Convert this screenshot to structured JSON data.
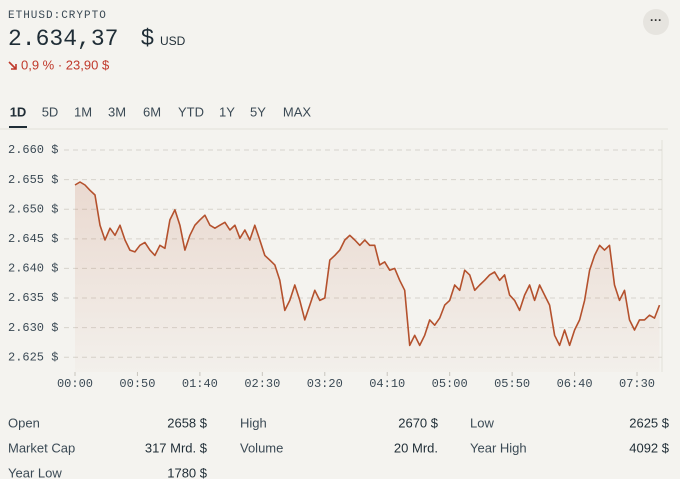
{
  "header": {
    "symbol": "ETHUSD:CRYPTO",
    "price": "2.634,37",
    "currency_sign": "$",
    "currency": "USD",
    "change": "0,9 % · 23,90 $",
    "more": "···"
  },
  "tabs": [
    "1D",
    "5D",
    "1M",
    "3M",
    "6M",
    "YTD",
    "1Y",
    "5Y",
    "MAX"
  ],
  "active_tab": 0,
  "chart_data": {
    "type": "line",
    "x": [
      0,
      4,
      8,
      12,
      16,
      20,
      24,
      28,
      32,
      36,
      40,
      44,
      48,
      52,
      56,
      60,
      64,
      68,
      72,
      76,
      80,
      84,
      88,
      92,
      96,
      100,
      104,
      108,
      112,
      116,
      120,
      124,
      128,
      132,
      136,
      140,
      144,
      148,
      152,
      156,
      160,
      164,
      168,
      172,
      176,
      180,
      184,
      188,
      192,
      196,
      200,
      204,
      208,
      212,
      216,
      220,
      224,
      228,
      232,
      236,
      240,
      244,
      248,
      252,
      256,
      260,
      264,
      268,
      272,
      276,
      280,
      284,
      288,
      292,
      296,
      300,
      304,
      308,
      312,
      316,
      320,
      324,
      328,
      332,
      336,
      340,
      344,
      348,
      352,
      356,
      360,
      364,
      368,
      372,
      376,
      380,
      384,
      388,
      392,
      396,
      400,
      404,
      408,
      412,
      416,
      420,
      424,
      428,
      432,
      436,
      440,
      444,
      448,
      452,
      456,
      460,
      464,
      468
    ],
    "series": [
      {
        "color": "#b4512d",
        "values": [
          2654.1,
          2654.6,
          2654.1,
          2653.2,
          2652.4,
          2647.3,
          2644.8,
          2646.8,
          2645.6,
          2647.3,
          2644.8,
          2643.1,
          2642.8,
          2643.9,
          2644.4,
          2643.1,
          2642.2,
          2643.9,
          2643.4,
          2648.2,
          2649.9,
          2647.3,
          2643.1,
          2645.6,
          2647.3,
          2648.2,
          2649.0,
          2647.3,
          2646.8,
          2647.3,
          2647.8,
          2646.5,
          2647.3,
          2645.1,
          2646.5,
          2644.8,
          2647.3,
          2644.8,
          2642.2,
          2641.4,
          2640.6,
          2638.0,
          2632.9,
          2634.6,
          2637.2,
          2634.6,
          2631.3,
          2633.8,
          2636.3,
          2634.6,
          2635.0,
          2641.4,
          2642.2,
          2643.1,
          2644.8,
          2645.6,
          2644.8,
          2643.9,
          2644.8,
          2643.9,
          2643.9,
          2640.6,
          2641.1,
          2639.7,
          2640.0,
          2638.0,
          2636.3,
          2627.0,
          2628.7,
          2627.0,
          2628.7,
          2631.3,
          2630.4,
          2631.6,
          2633.8,
          2634.6,
          2637.2,
          2636.3,
          2639.7,
          2638.9,
          2636.3,
          2637.2,
          2638.0,
          2638.9,
          2639.4,
          2638.0,
          2638.9,
          2635.5,
          2634.6,
          2632.9,
          2635.5,
          2637.2,
          2634.6,
          2637.2,
          2635.5,
          2633.8,
          2628.7,
          2627.0,
          2629.6,
          2627.0,
          2629.6,
          2631.3,
          2634.6,
          2639.7,
          2642.2,
          2643.9,
          2643.1,
          2643.9,
          2637.2,
          2634.6,
          2636.3,
          2631.3,
          2629.6,
          2631.3,
          2631.3,
          2632.1,
          2631.6,
          2633.8
        ]
      }
    ],
    "xlim": [
      -4,
      470
    ],
    "xticks": [
      {
        "value": 0,
        "label": "00:00"
      },
      {
        "value": 50,
        "label": "00:50"
      },
      {
        "value": 100,
        "label": "01:40"
      },
      {
        "value": 150,
        "label": "02:30"
      },
      {
        "value": 200,
        "label": "03:20"
      },
      {
        "value": 250,
        "label": "04:10"
      },
      {
        "value": 300,
        "label": "05:00"
      },
      {
        "value": 350,
        "label": "05:50"
      },
      {
        "value": 400,
        "label": "06:40"
      },
      {
        "value": 450,
        "label": "07:30"
      }
    ],
    "ylim": [
      2622.5,
      2661.7
    ],
    "yticks": [
      {
        "value": 2660,
        "label": "2.660 $"
      },
      {
        "value": 2655,
        "label": "2.655 $"
      },
      {
        "value": 2650,
        "label": "2.650 $"
      },
      {
        "value": 2645,
        "label": "2.645 $"
      },
      {
        "value": 2640,
        "label": "2.640 $"
      },
      {
        "value": 2635,
        "label": "2.635 $"
      },
      {
        "value": 2630,
        "label": "2.630 $"
      },
      {
        "value": 2625,
        "label": "2.625 $"
      }
    ],
    "grid": true
  },
  "stats": [
    {
      "label": "Open",
      "value": "2658 $"
    },
    {
      "label": "High",
      "value": "2670 $"
    },
    {
      "label": "Low",
      "value": "2625 $"
    },
    {
      "label": "Market Cap",
      "value": "317 Mrd. $"
    },
    {
      "label": "Volume",
      "value": "20 Mrd."
    },
    {
      "label": "Year High",
      "value": "4092 $"
    },
    {
      "label": "Year Low",
      "value": "1780 $"
    }
  ]
}
